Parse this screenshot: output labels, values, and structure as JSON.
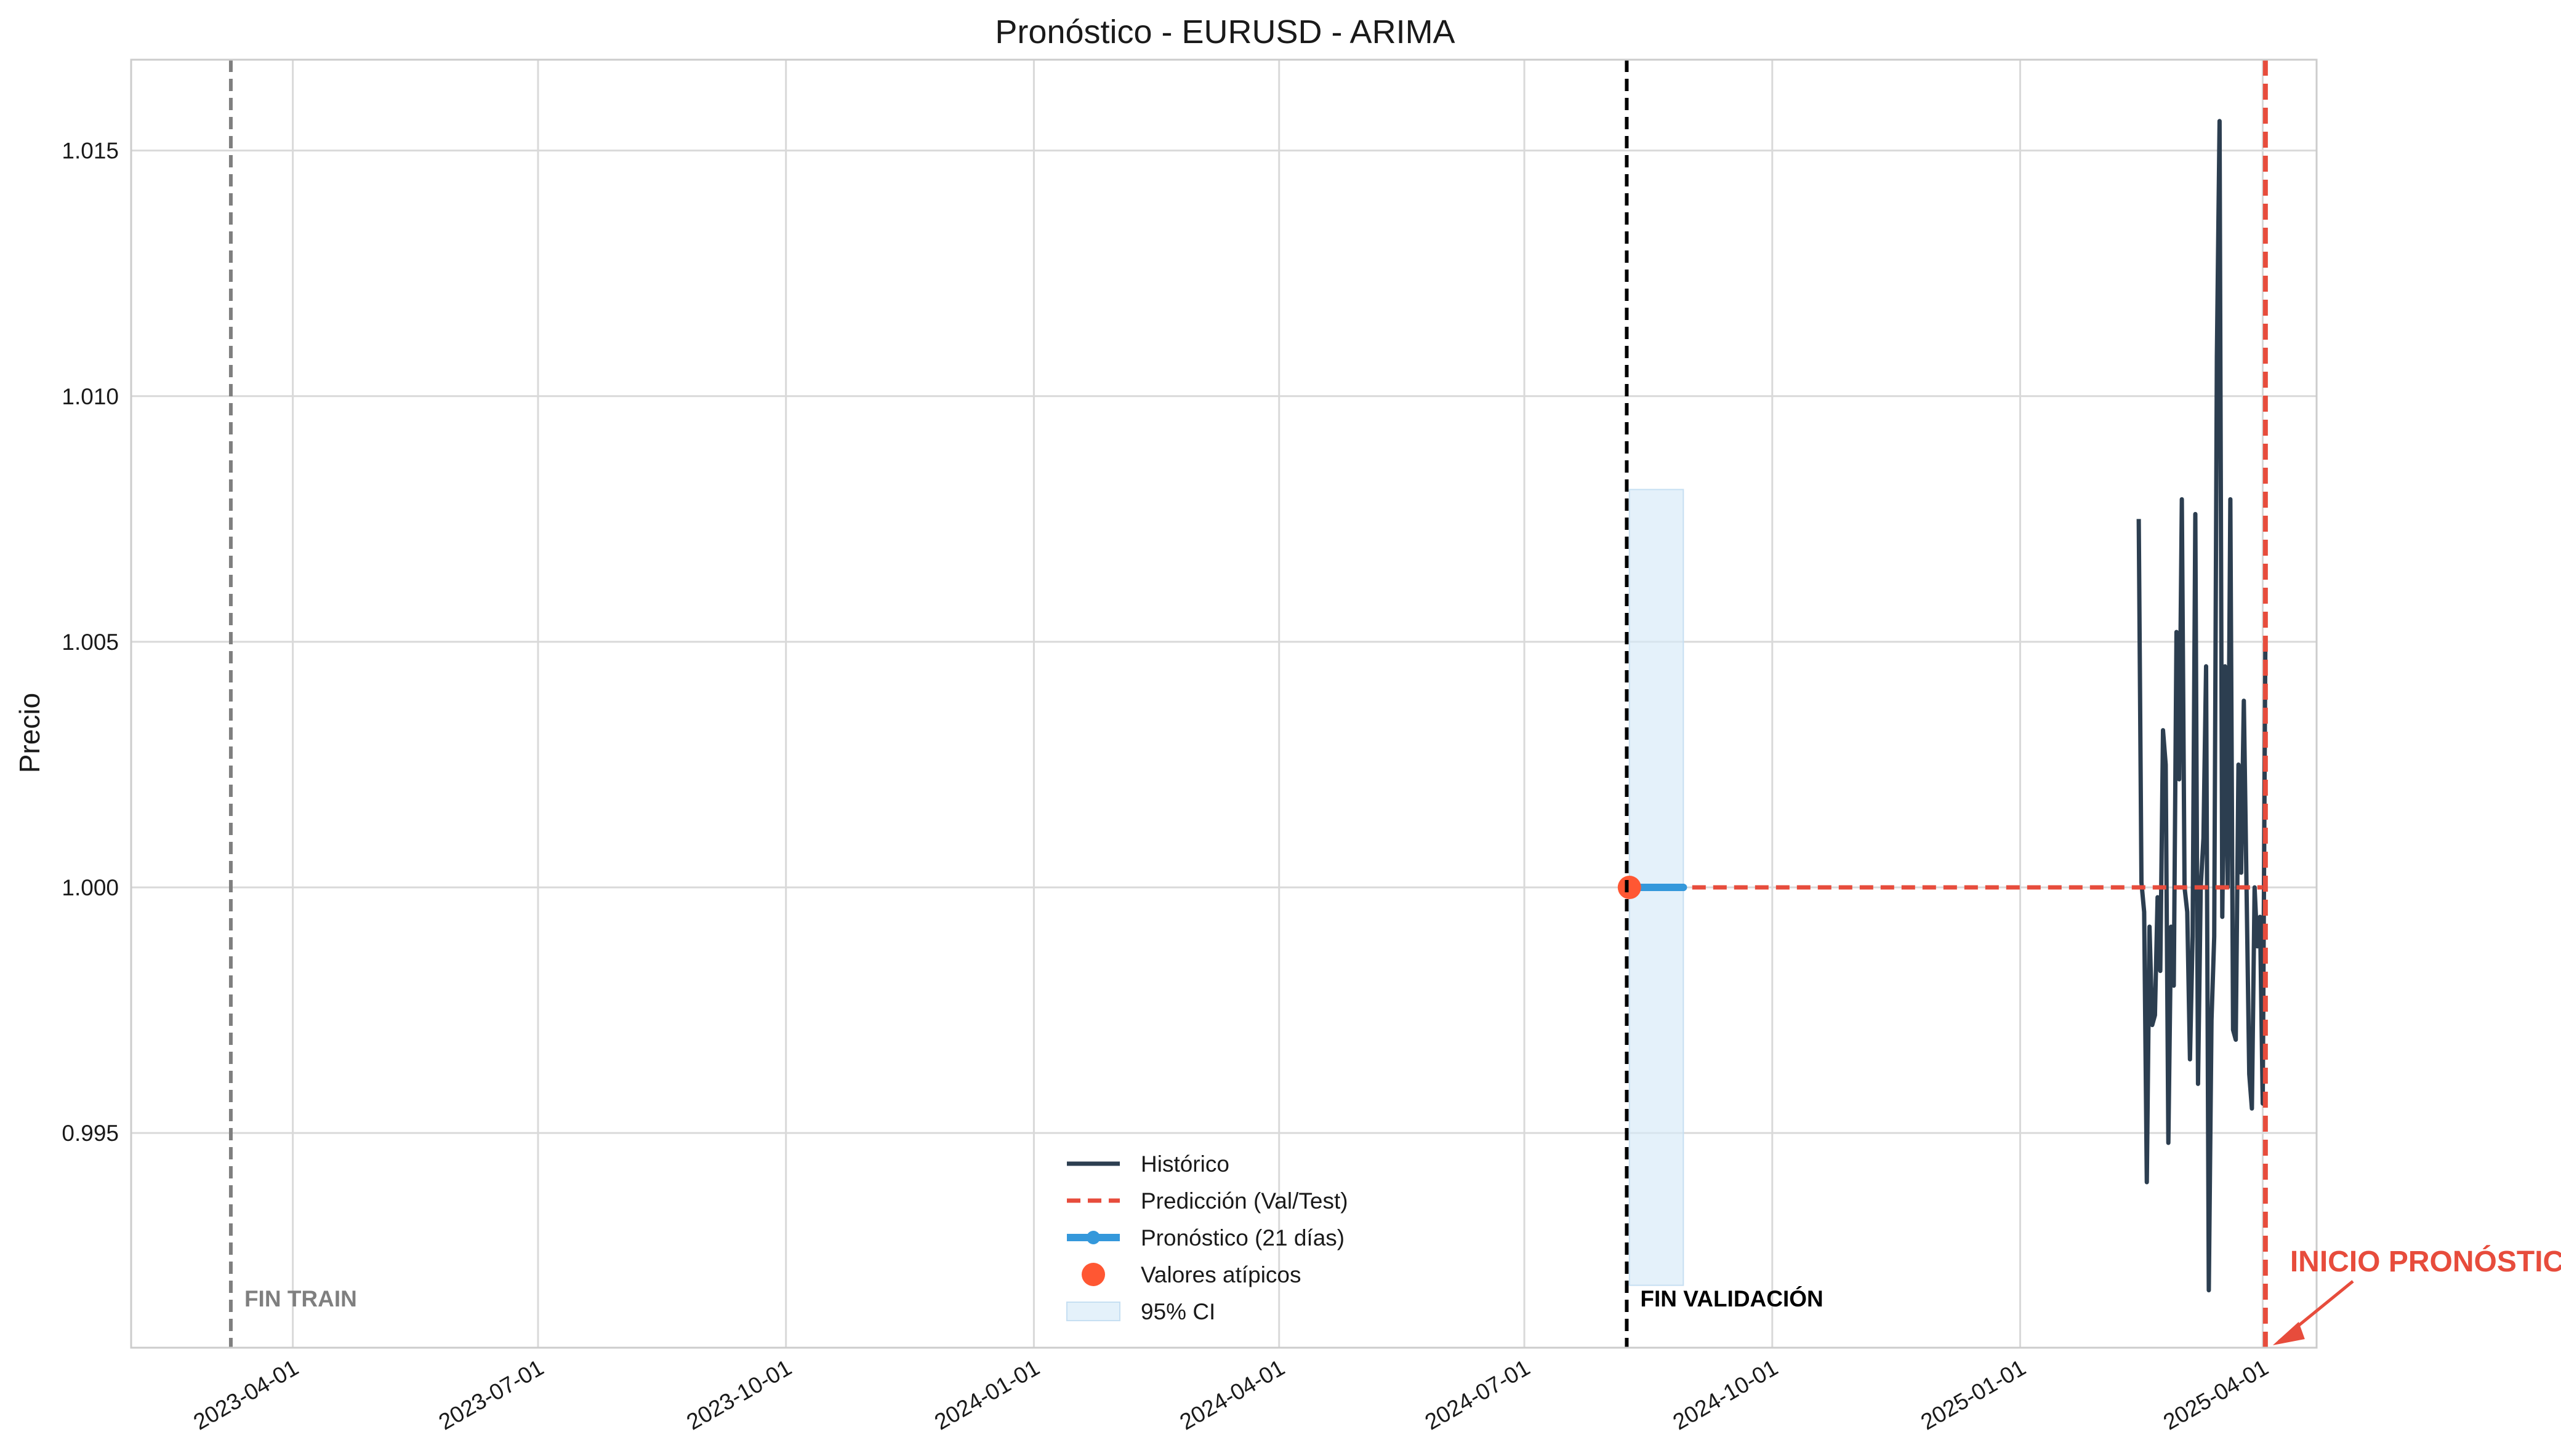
{
  "chart_data": {
    "type": "line",
    "title": "Pronóstico - EURUSD - ARIMA",
    "xlabel": "",
    "ylabel": "Precio",
    "grid": true,
    "legend_position": "bottom-center",
    "xlim": [
      "2023-01-31",
      "2025-04-21"
    ],
    "ylim": [
      0.99063,
      1.01685
    ],
    "x_ticks": [
      "2023-04-01",
      "2023-07-01",
      "2023-10-01",
      "2024-01-01",
      "2024-04-01",
      "2024-07-01",
      "2024-10-01",
      "2025-01-01",
      "2025-04-01"
    ],
    "y_ticks": [
      0.995,
      1.0,
      1.005,
      1.01,
      1.015
    ],
    "y_tick_labels": [
      "0.995",
      "1.000",
      "1.005",
      "1.010",
      "1.015"
    ],
    "series": [
      {
        "name": "Histórico",
        "type": "line",
        "color": "#2c3e50",
        "points": [
          [
            "2025-02-14",
            1.0075
          ],
          [
            "2025-02-15",
            1.0001
          ],
          [
            "2025-02-16",
            0.9995
          ],
          [
            "2025-02-17",
            0.994
          ],
          [
            "2025-02-18",
            0.9992
          ],
          [
            "2025-02-19",
            0.9972
          ],
          [
            "2025-02-20",
            0.9974
          ],
          [
            "2025-02-21",
            0.9998
          ],
          [
            "2025-02-22",
            0.9983
          ],
          [
            "2025-02-23",
            1.0032
          ],
          [
            "2025-02-24",
            1.0025
          ],
          [
            "2025-02-25",
            0.9948
          ],
          [
            "2025-02-26",
            0.9992
          ],
          [
            "2025-02-27",
            0.998
          ],
          [
            "2025-02-28",
            1.0052
          ],
          [
            "2025-03-01",
            1.0022
          ],
          [
            "2025-03-02",
            1.0079
          ],
          [
            "2025-03-03",
            1.0
          ],
          [
            "2025-03-04",
            0.9995
          ],
          [
            "2025-03-05",
            0.9965
          ],
          [
            "2025-03-06",
            0.999
          ],
          [
            "2025-03-07",
            1.0076
          ],
          [
            "2025-03-08",
            0.996
          ],
          [
            "2025-03-09",
            1.0
          ],
          [
            "2025-03-10",
            1.001
          ],
          [
            "2025-03-11",
            1.0045
          ],
          [
            "2025-03-12",
            0.9918
          ],
          [
            "2025-03-13",
            0.9973
          ],
          [
            "2025-03-14",
            0.999
          ],
          [
            "2025-03-15",
            1.0108
          ],
          [
            "2025-03-16",
            1.0156
          ],
          [
            "2025-03-17",
            0.9994
          ],
          [
            "2025-03-18",
            1.0045
          ],
          [
            "2025-03-19",
            1.0
          ],
          [
            "2025-03-20",
            1.0079
          ],
          [
            "2025-03-21",
            0.9971
          ],
          [
            "2025-03-22",
            0.9969
          ],
          [
            "2025-03-23",
            1.0025
          ],
          [
            "2025-03-24",
            1.0003
          ],
          [
            "2025-03-25",
            1.0038
          ],
          [
            "2025-03-26",
            1.0
          ],
          [
            "2025-03-27",
            0.9962
          ],
          [
            "2025-03-28",
            0.9955
          ],
          [
            "2025-03-29",
            1.0
          ],
          [
            "2025-03-30",
            0.9988
          ],
          [
            "2025-03-31",
            0.9994
          ],
          [
            "2025-04-01",
            0.9956
          ],
          [
            "2025-04-02",
            1.005
          ]
        ]
      },
      {
        "name": "Predicción (Val/Test)",
        "type": "dashed-line",
        "color": "#e74c3c",
        "points": [
          [
            "2024-08-09",
            1.0
          ],
          [
            "2025-04-01",
            1.0
          ]
        ]
      },
      {
        "name": "Pronóstico (21 días)",
        "type": "line-markers",
        "color": "#3498db",
        "points": [
          [
            "2024-08-09",
            1.0
          ],
          [
            "2024-08-10",
            1.0
          ],
          [
            "2024-08-11",
            1.0
          ],
          [
            "2024-08-12",
            1.0
          ],
          [
            "2024-08-13",
            1.0
          ],
          [
            "2024-08-14",
            1.0
          ],
          [
            "2024-08-15",
            1.0
          ],
          [
            "2024-08-16",
            1.0
          ],
          [
            "2024-08-17",
            1.0
          ],
          [
            "2024-08-18",
            1.0
          ],
          [
            "2024-08-19",
            1.0
          ],
          [
            "2024-08-20",
            1.0
          ],
          [
            "2024-08-21",
            1.0
          ],
          [
            "2024-08-22",
            1.0
          ],
          [
            "2024-08-23",
            1.0
          ],
          [
            "2024-08-24",
            1.0
          ],
          [
            "2024-08-25",
            1.0
          ],
          [
            "2024-08-26",
            1.0
          ],
          [
            "2024-08-27",
            1.0
          ],
          [
            "2024-08-28",
            1.0
          ],
          [
            "2024-08-29",
            1.0
          ]
        ]
      },
      {
        "name": "Valores atípicos",
        "type": "scatter",
        "color": "#ff5733",
        "points": [
          [
            "2024-08-09",
            1.0
          ]
        ]
      },
      {
        "name": "95% CI",
        "type": "band",
        "color": "#d6eaf8",
        "x": [
          "2024-08-09",
          "2024-08-29"
        ],
        "lower": 0.9919,
        "upper": 1.0081
      }
    ],
    "vlines": [
      {
        "x": "2023-03-09",
        "color": "#7f7f7f",
        "style": "dashed",
        "label": "FIN TRAIN"
      },
      {
        "x": "2024-08-08",
        "color": "#000000",
        "style": "dashed",
        "label": "FIN VALIDACIÓN"
      },
      {
        "x": "2025-04-02",
        "color": "#e74c3c",
        "style": "dashed",
        "label": "INICIO PRONÓSTICO"
      }
    ],
    "annotations": {
      "fin_train": "FIN TRAIN",
      "fin_validacion": "FIN VALIDACIÓN",
      "inicio_pronostico": "INICIO PRONÓSTICO"
    }
  }
}
